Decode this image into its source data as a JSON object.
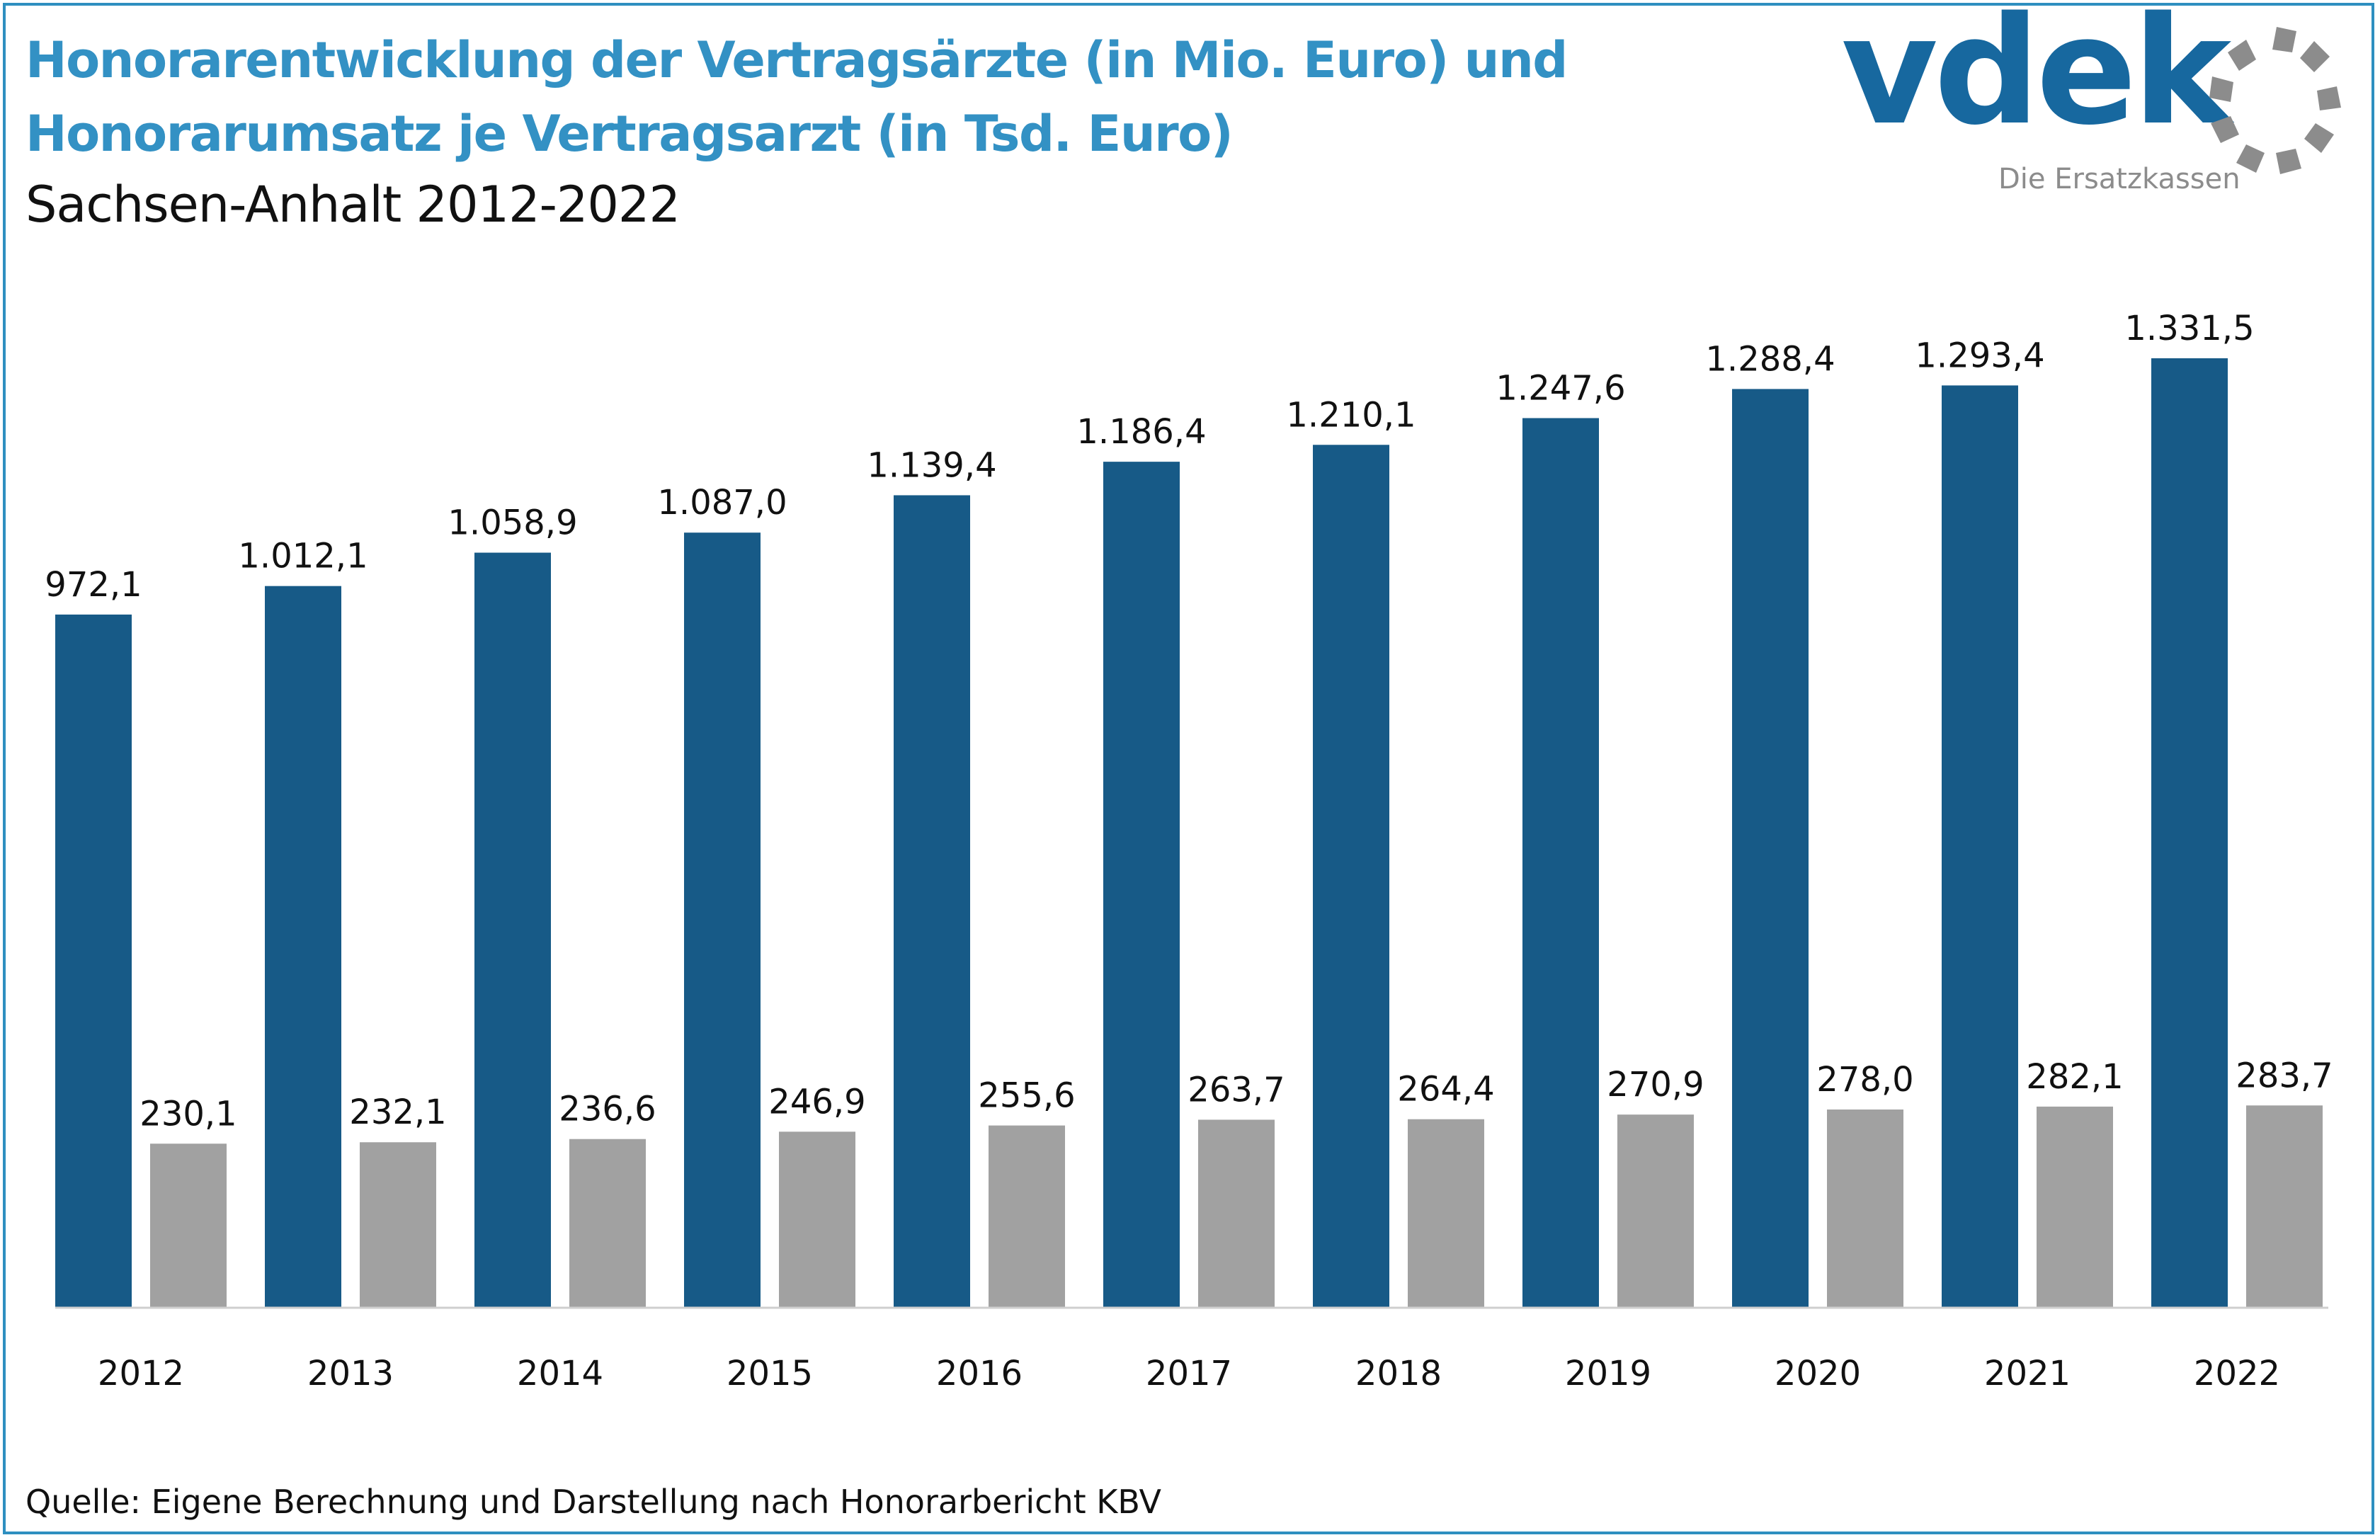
{
  "title_line1": "Honorarentwicklung der Vertragsärzte (in Mio. Euro) und",
  "title_line2": "Honorarumsatz je Vertragsarzt (in Tsd. Euro)",
  "subtitle": "Sachsen-Anhalt 2012-2022",
  "logo": {
    "wordmark": "vdek",
    "tagline": "Die Ersatzkassen"
  },
  "source": "Quelle: Eigene Berechnung und Darstellung nach Honorarbericht KBV",
  "colors": {
    "accent": "#2e8fc0",
    "series1": "#175a87",
    "series2": "#a1a1a1",
    "logo_blue": "#17689f",
    "logo_gray": "#8c8c8c"
  },
  "chart_data": {
    "type": "bar",
    "categories": [
      "2012",
      "2013",
      "2014",
      "2015",
      "2016",
      "2017",
      "2018",
      "2019",
      "2020",
      "2021",
      "2022"
    ],
    "series": [
      {
        "values": [
          972.1,
          1012.1,
          1058.9,
          1087.0,
          1139.4,
          1186.4,
          1210.1,
          1247.6,
          1288.4,
          1293.4,
          1331.5
        ],
        "labels": [
          "972,1",
          "1.012,1",
          "1.058,9",
          "1.087,0",
          "1.139,4",
          "1.186,4",
          "1.210,1",
          "1.247,6",
          "1.288,4",
          "1.293,4",
          "1.331,5"
        ],
        "color": "#175a87"
      },
      {
        "values": [
          230.1,
          232.1,
          236.6,
          246.9,
          255.6,
          263.7,
          264.4,
          270.9,
          278.0,
          282.1,
          283.7
        ],
        "labels": [
          "230,1",
          "232,1",
          "236,6",
          "246,9",
          "255,6",
          "263,7",
          "264,4",
          "270,9",
          "278,0",
          "282,1",
          "283,7"
        ],
        "color": "#a1a1a1"
      }
    ],
    "grid": false,
    "legend": "none"
  }
}
